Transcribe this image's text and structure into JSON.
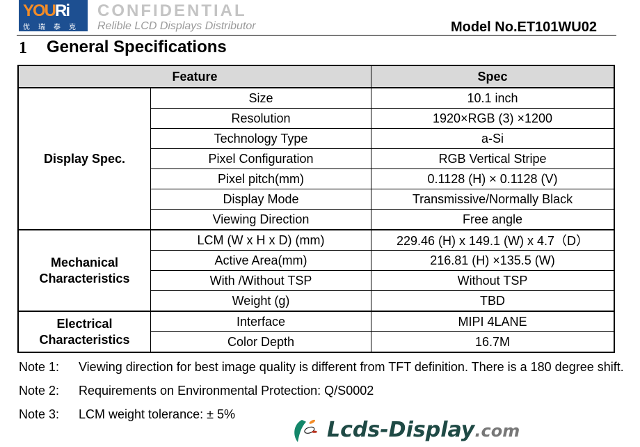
{
  "header": {
    "logo_text": "YOURi",
    "logo_cn": "优瑞泰克",
    "model": "Model No.ET101WU02"
  },
  "section": {
    "number": "1",
    "title": "General Specifications"
  },
  "table": {
    "headers": [
      "Feature",
      "Spec"
    ],
    "groups": [
      {
        "name": "Display Spec.",
        "rows": [
          [
            "Size",
            "10.1 inch"
          ],
          [
            "Resolution",
            "1920×RGB (3) ×1200"
          ],
          [
            "Technology Type",
            "a-Si"
          ],
          [
            "Pixel Configuration",
            "RGB Vertical Stripe"
          ],
          [
            "Pixel pitch(mm)",
            "0.1128 (H) × 0.1128 (V)"
          ],
          [
            "Display Mode",
            "Transmissive/Normally Black"
          ],
          [
            "Viewing Direction",
            "Free angle"
          ]
        ]
      },
      {
        "name": "Mechanical Characteristics",
        "rows": [
          [
            "LCM (W x H x D) (mm)",
            "229.46 (H) x 149.1 (W) x 4.7（D）"
          ],
          [
            "Active Area(mm)",
            "216.81 (H) ×135.5 (W)"
          ],
          [
            "With /Without TSP",
            "Without TSP"
          ],
          [
            "Weight (g)",
            "TBD"
          ]
        ]
      },
      {
        "name": "Electrical Characteristics",
        "rows": [
          [
            "Interface",
            "MIPI 4LANE"
          ],
          [
            "Color Depth",
            "16.7M"
          ]
        ]
      }
    ]
  },
  "notes": [
    {
      "label": "Note 1:",
      "text": "Viewing direction for best image quality is different from TFT definition. There is a 180 degree shift."
    },
    {
      "label": "Note 2:",
      "text": "Requirements on Environmental Protection: Q/S0002"
    },
    {
      "label": "Note 3:",
      "text": "LCM weight tolerance: ± 5%"
    }
  ],
  "watermarks": {
    "confidential": "CONFIDENTIAL",
    "site": "Lcds-Display",
    "site_tld": ".com",
    "tagline": "Relible LCD Displays Distributor"
  }
}
